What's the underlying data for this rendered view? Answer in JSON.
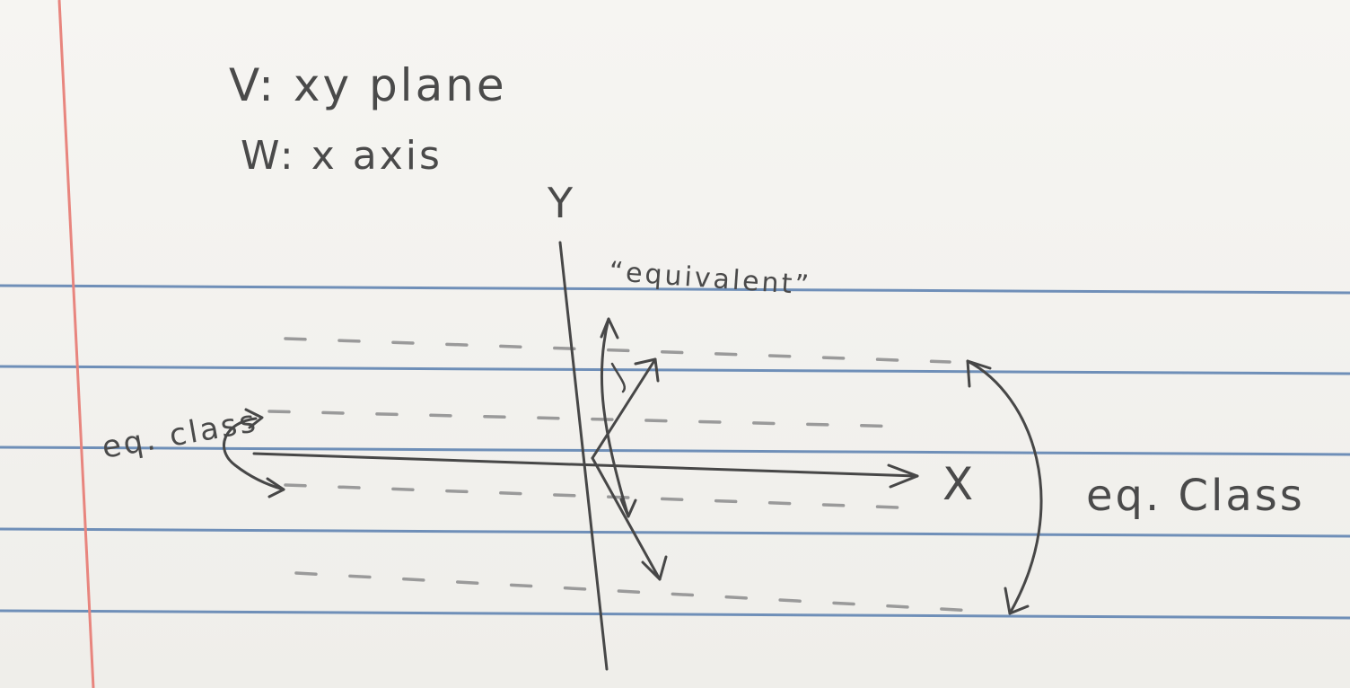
{
  "notes": {
    "line1": "V: xy plane",
    "line2": "W: x axis"
  },
  "axes": {
    "y_label": "Y",
    "x_label": "X"
  },
  "annotations": {
    "equivalent": "“equivalent”",
    "left_class": "eq. class",
    "right_class": "eq. Class"
  },
  "colors": {
    "paper": "#f2f1ee",
    "rule_line": "#6f8fb8",
    "margin_line": "#e8857e",
    "pencil": "#474747",
    "dashes": "#9a9a9a"
  }
}
